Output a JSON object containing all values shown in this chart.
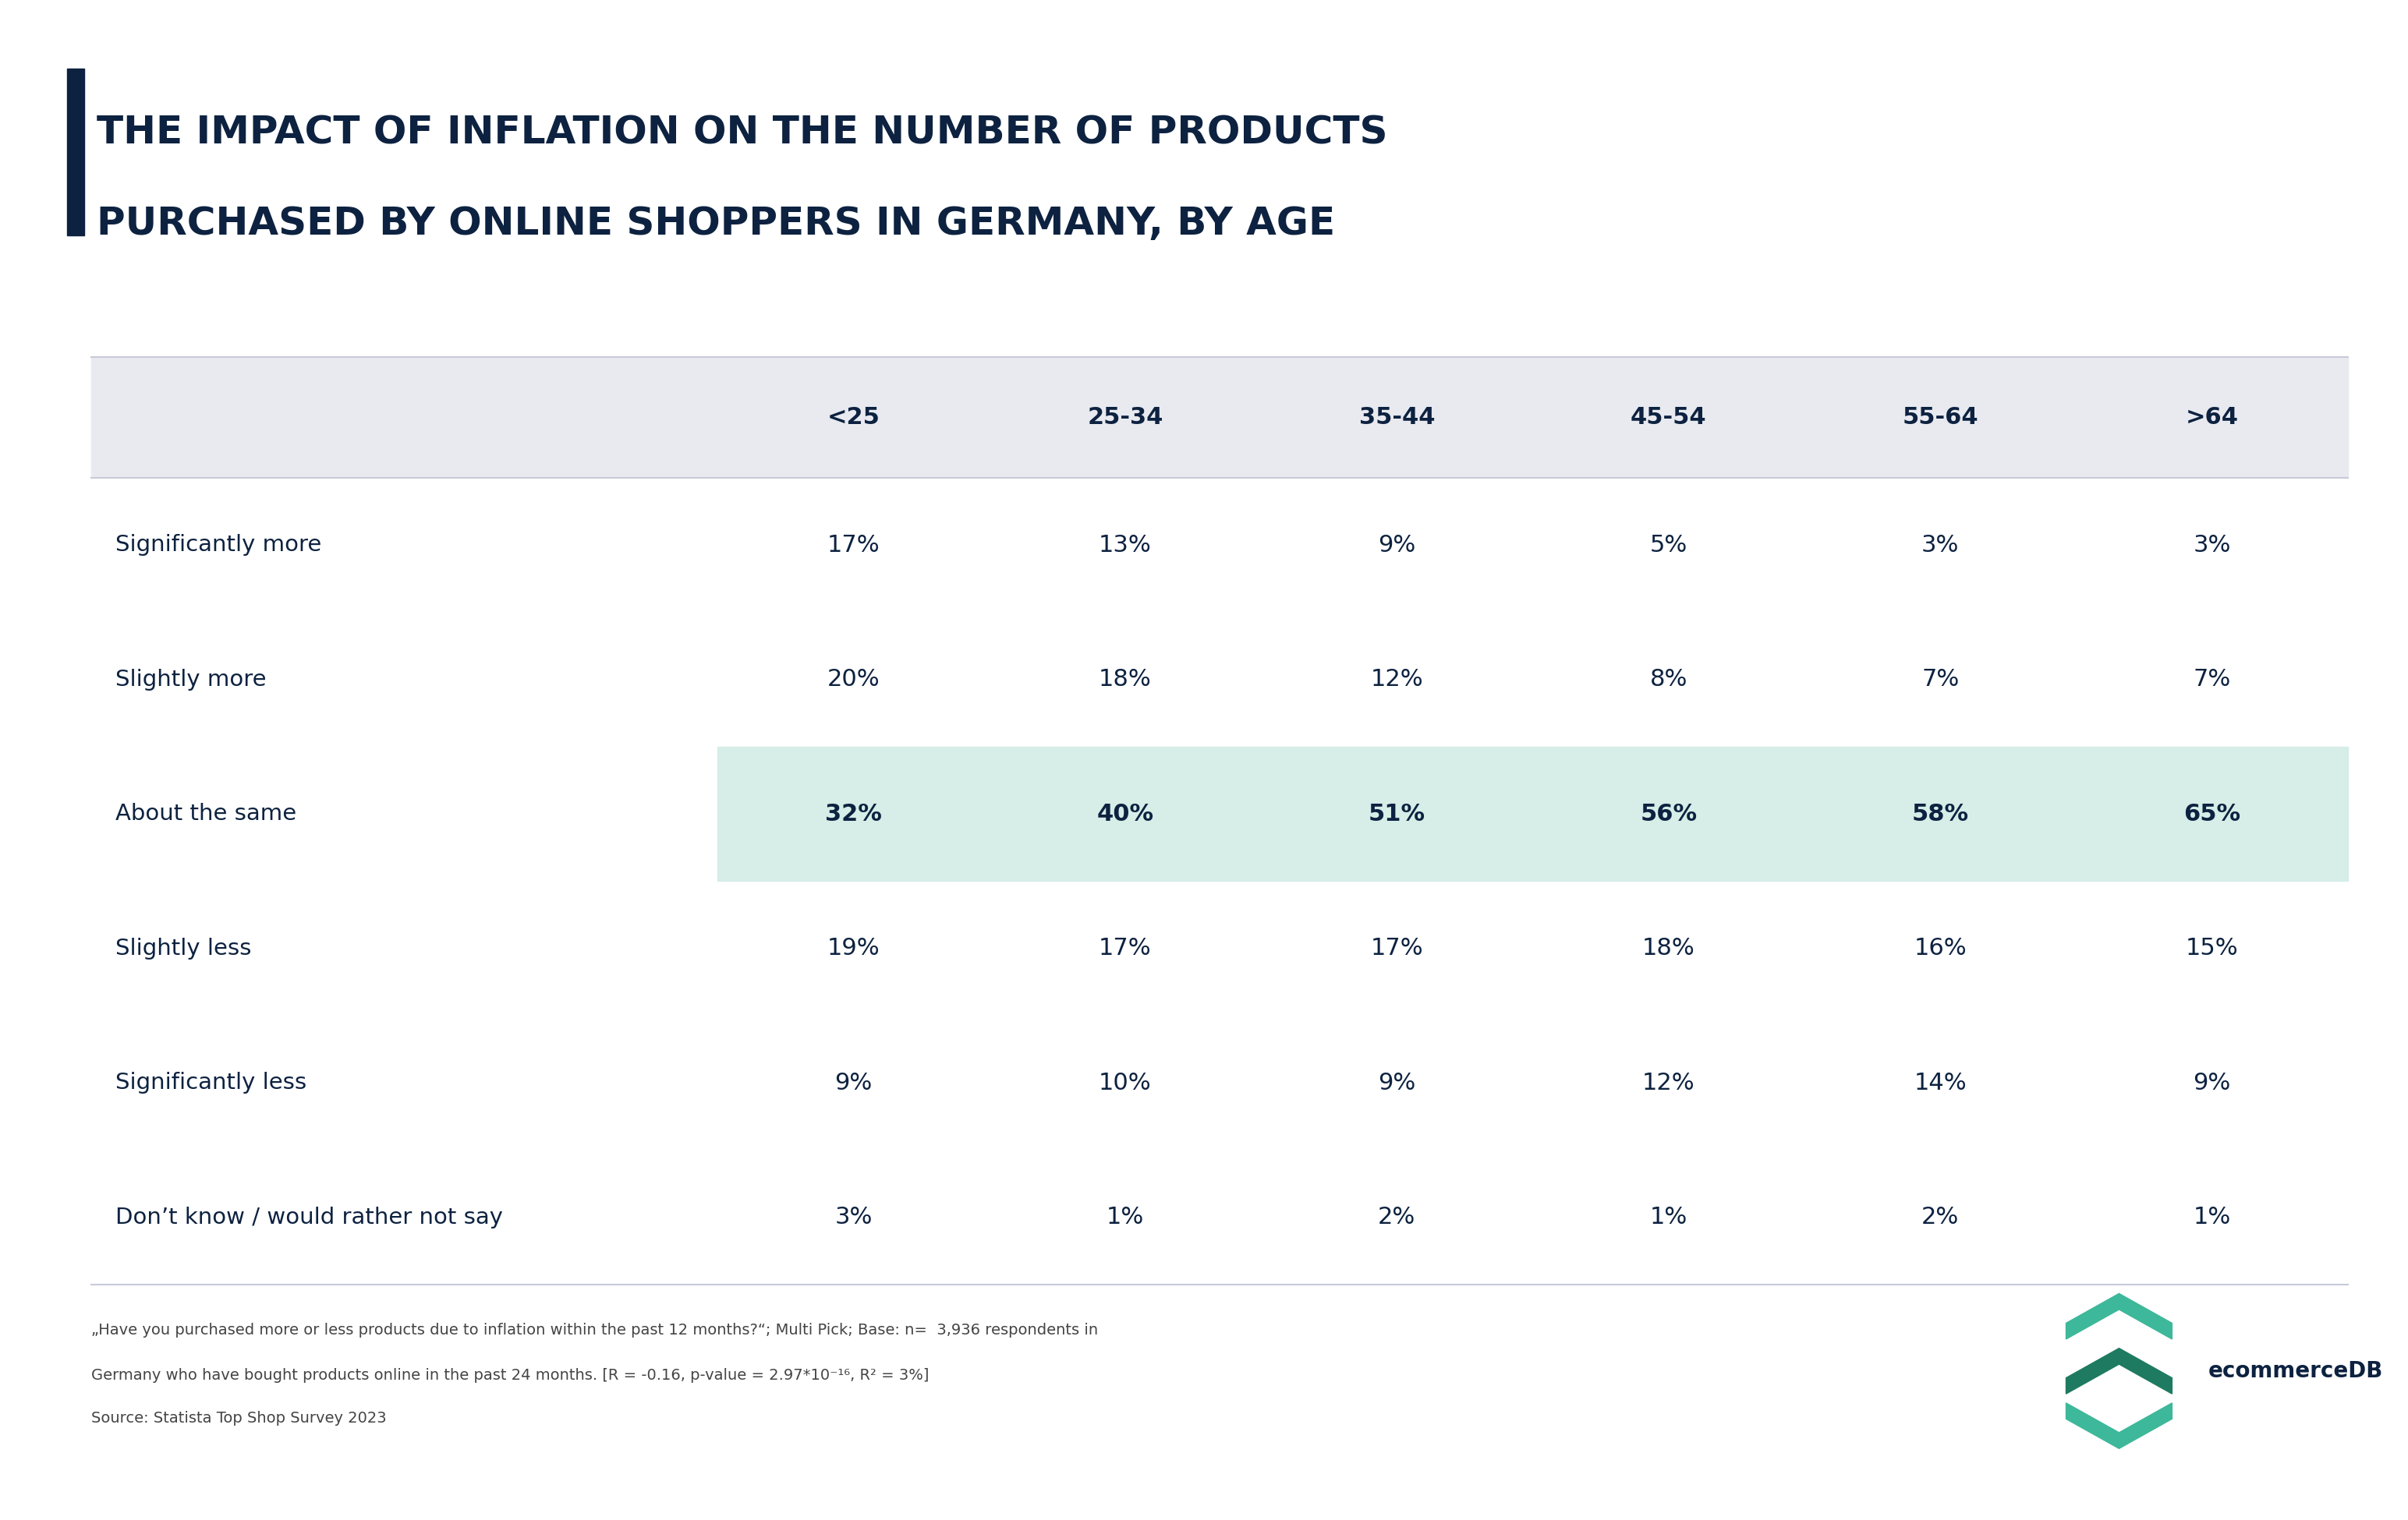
{
  "title_line1": "THE IMPACT OF INFLATION ON THE NUMBER OF PRODUCTS",
  "title_line2": "PURCHASED BY ONLINE SHOPPERS IN GERMANY, BY AGE",
  "title_color": "#0d2240",
  "title_bar_color": "#0d2240",
  "background_color": "#ffffff",
  "header_bg_color": "#e8eaf0",
  "highlight_row_bg_color": "#d6ede8",
  "columns": [
    "<25",
    "25-34",
    "35-44",
    "45-54",
    "55-64",
    ">64"
  ],
  "rows": [
    "Significantly more",
    "Slightly more",
    "About the same",
    "Slightly less",
    "Significantly less",
    "Don’t know / would rather not say"
  ],
  "data": [
    [
      "17%",
      "13%",
      "9%",
      "5%",
      "3%",
      "3%"
    ],
    [
      "20%",
      "18%",
      "12%",
      "8%",
      "7%",
      "7%"
    ],
    [
      "32%",
      "40%",
      "51%",
      "56%",
      "58%",
      "65%"
    ],
    [
      "19%",
      "17%",
      "17%",
      "18%",
      "16%",
      "15%"
    ],
    [
      "9%",
      "10%",
      "9%",
      "12%",
      "14%",
      "9%"
    ],
    [
      "3%",
      "1%",
      "2%",
      "1%",
      "2%",
      "1%"
    ]
  ],
  "highlighted_row": 2,
  "footnote_line1": "„Have you purchased more or less products due to inflation within the past 12 months?“; Multi Pick; Base: n=  3,936 respondents in",
  "footnote_line2": "Germany who have bought products online in the past 24 months. [R = -0.16, p-value = 2.97*10⁻¹⁶, R² = 3%]",
  "footnote_line3": "Source: Statista Top Shop Survey 2023",
  "text_color": "#0d2240",
  "cell_text_color": "#0d2240",
  "header_text_color": "#0d2240",
  "row_label_color": "#0d2240",
  "separator_color": "#c8cbd8",
  "footnote_color": "#444444",
  "teal_color": "#3db89a",
  "dark_teal": "#1e7a60",
  "title_fontsize": 36,
  "header_fontsize": 22,
  "cell_fontsize": 22,
  "row_label_fontsize": 21,
  "footnote_fontsize": 14
}
